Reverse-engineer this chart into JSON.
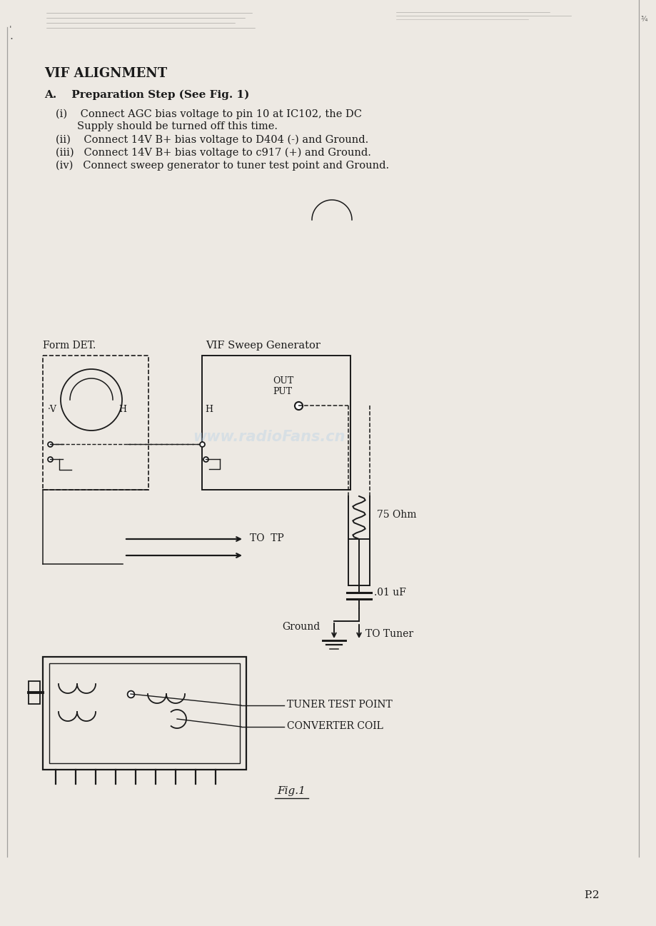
{
  "bg_color": "#ede9e3",
  "text_color": "#1a1a1a",
  "title": "VIF ALIGNMENT",
  "section_a": "A.    Preparation Step (See Fig. 1)",
  "fig_label": "Fig.1",
  "page_label": "P.2",
  "form_det_label": "Form DET.",
  "vif_label": "VIF Sweep Generator",
  "out_label1": "OUT",
  "out_label2": "PUT",
  "to_tp_label": "TO  TP",
  "ohm_label": "75 Ohm",
  "cap_label": ".01 uF",
  "ground_label": "Ground",
  "to_tuner_label": "TO Tuner",
  "tuner_test_label": "TUNER TEST POINT",
  "converter_coil_label": "CONVERTER COIL",
  "watermark": "www.radioFans.cn"
}
